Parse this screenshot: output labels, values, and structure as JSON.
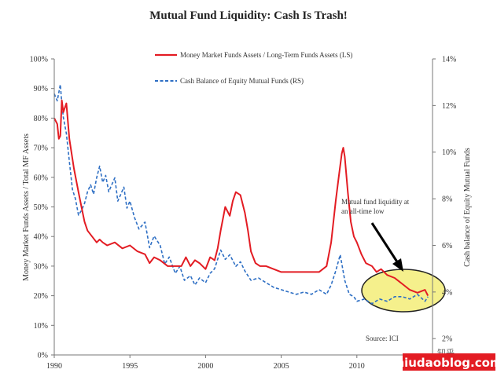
{
  "chart_data": {
    "type": "line",
    "title": "Mutual Fund Liquidity: Cash Is Trash!",
    "xlabel": "",
    "ylabel_left": "Money Market Funds Assets / Total MF Assets",
    "ylabel_right": "Cash balance of Equity Mutual Funds",
    "xlim": [
      1990,
      2015
    ],
    "x_ticks": [
      1990,
      1995,
      2000,
      2005,
      2010,
      2015
    ],
    "x_tick_labels": [
      "1990",
      "1995",
      "2000",
      "2005",
      "2010",
      "2015"
    ],
    "ylim_left": [
      0,
      100
    ],
    "left_ticks": [
      0,
      10,
      20,
      30,
      40,
      50,
      60,
      70,
      80,
      90,
      100
    ],
    "left_tick_labels": [
      "0%",
      "10%",
      "20%",
      "30%",
      "40%",
      "50%",
      "60%",
      "70%",
      "80%",
      "90%",
      "100%"
    ],
    "ylim_right": [
      1.3,
      14
    ],
    "right_ticks": [
      2,
      4,
      6,
      8,
      10,
      12,
      14
    ],
    "right_tick_labels": [
      "2%",
      "4%",
      "6%",
      "8%",
      "10%",
      "12%",
      "14%"
    ],
    "legend_position": "top-center",
    "grid": false,
    "series": [
      {
        "name": "Money Market Funds Assets / Long-Term Funds Assets (LS)",
        "axis": "left",
        "color": "#e31c23",
        "style": "solid",
        "x": [
          1990.0,
          1990.2,
          1990.3,
          1990.4,
          1990.5,
          1990.6,
          1990.8,
          1991.0,
          1991.3,
          1991.6,
          1991.8,
          1992.0,
          1992.2,
          1992.5,
          1992.8,
          1993.0,
          1993.2,
          1993.5,
          1994.0,
          1994.5,
          1995.0,
          1995.5,
          1996.0,
          1996.3,
          1996.6,
          1997.0,
          1997.5,
          1998.0,
          1998.4,
          1998.7,
          1999.0,
          1999.3,
          1999.6,
          2000.0,
          2000.3,
          2000.6,
          2000.8,
          2001.0,
          2001.3,
          2001.6,
          2001.8,
          2002.0,
          2002.3,
          2002.6,
          2002.8,
          2003.0,
          2003.3,
          2003.6,
          2004.0,
          2004.5,
          2005.0,
          2005.5,
          2006.0,
          2006.5,
          2007.0,
          2007.5,
          2008.0,
          2008.3,
          2008.6,
          2008.8,
          2009.0,
          2009.1,
          2009.2,
          2009.4,
          2009.6,
          2009.8,
          2010.0,
          2010.3,
          2010.6,
          2011.0,
          2011.3,
          2011.6,
          2012.0,
          2012.5,
          2013.0,
          2013.5,
          2014.0,
          2014.5,
          2014.7
        ],
        "values": [
          80,
          78,
          73,
          74,
          86,
          82,
          85,
          73,
          63,
          55,
          50,
          45,
          42,
          40,
          38,
          39,
          38,
          37,
          38,
          36,
          37,
          35,
          34,
          31,
          33,
          32,
          30,
          30,
          30,
          33,
          30,
          32,
          31,
          29,
          33,
          32,
          36,
          42,
          50,
          47,
          52,
          55,
          54,
          48,
          42,
          35,
          31,
          30,
          30,
          29,
          28,
          28,
          28,
          28,
          28,
          28,
          30,
          38,
          52,
          60,
          68,
          70,
          67,
          55,
          45,
          40,
          38,
          34,
          31,
          30,
          28,
          29,
          27,
          26,
          24,
          22,
          21,
          22,
          20
        ]
      },
      {
        "name": "Cash Balance of Equity Mutual Funds (RS)",
        "axis": "right",
        "color": "#2e6fc4",
        "style": "dashed",
        "x": [
          1990.0,
          1990.2,
          1990.4,
          1990.5,
          1990.6,
          1990.8,
          1991.0,
          1991.2,
          1991.4,
          1991.6,
          1991.8,
          1992.0,
          1992.2,
          1992.4,
          1992.6,
          1992.8,
          1993.0,
          1993.2,
          1993.4,
          1993.6,
          1993.8,
          1994.0,
          1994.2,
          1994.4,
          1994.6,
          1994.8,
          1995.0,
          1995.3,
          1995.6,
          1996.0,
          1996.3,
          1996.6,
          1997.0,
          1997.3,
          1997.6,
          1998.0,
          1998.3,
          1998.6,
          1999.0,
          1999.3,
          1999.6,
          2000.0,
          2000.3,
          2000.6,
          2001.0,
          2001.3,
          2001.6,
          2002.0,
          2002.3,
          2002.6,
          2003.0,
          2003.5,
          2004.0,
          2004.5,
          2005.0,
          2005.5,
          2006.0,
          2006.5,
          2007.0,
          2007.5,
          2008.0,
          2008.3,
          2008.6,
          2008.9,
          2009.2,
          2009.5,
          2009.8,
          2010.0,
          2010.5,
          2011.0,
          2011.5,
          2012.0,
          2012.5,
          2013.0,
          2013.5,
          2014.0,
          2014.5,
          2014.7
        ],
        "values": [
          12.5,
          12.2,
          12.9,
          12.1,
          11.5,
          10.8,
          9.6,
          8.4,
          8.0,
          7.3,
          7.5,
          7.8,
          8.3,
          8.6,
          8.2,
          8.9,
          9.4,
          8.7,
          9.0,
          8.3,
          8.6,
          8.9,
          7.9,
          8.2,
          8.5,
          7.6,
          7.9,
          7.2,
          6.7,
          7.0,
          5.9,
          6.4,
          6.0,
          5.2,
          5.5,
          4.8,
          5.1,
          4.5,
          4.7,
          4.3,
          4.6,
          4.4,
          4.8,
          5.0,
          5.8,
          5.4,
          5.6,
          5.1,
          5.3,
          4.9,
          4.5,
          4.6,
          4.4,
          4.2,
          4.1,
          4.0,
          3.9,
          4.0,
          3.9,
          4.1,
          3.9,
          4.3,
          4.9,
          5.6,
          4.5,
          3.9,
          3.8,
          3.6,
          3.7,
          3.5,
          3.7,
          3.6,
          3.8,
          3.8,
          3.7,
          3.9,
          3.6,
          3.8
        ]
      }
    ],
    "annotations": [
      {
        "text_lines": [
          "Mutual fund liquidity at",
          "an all-time low"
        ]
      },
      {
        "text": "Source: ICI"
      }
    ],
    "highlight": {
      "shape": "ellipse",
      "fill": "#f5f08c",
      "stroke": "#222222"
    },
    "watermark": {
      "prefix": "知乎",
      "domain": "niudaoblog.com"
    }
  }
}
